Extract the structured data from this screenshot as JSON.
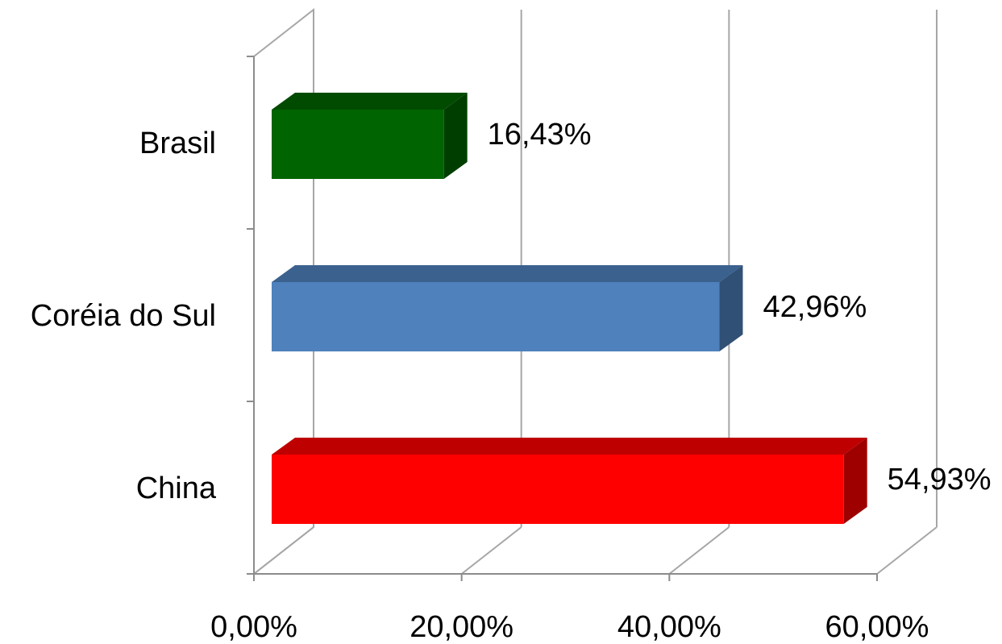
{
  "chart_data": {
    "type": "bar",
    "orientation": "horizontal",
    "three_d": true,
    "categories": [
      "Brasil",
      "Coréia do Sul",
      "China"
    ],
    "values": [
      16.43,
      42.96,
      54.93
    ],
    "data_labels": [
      "16,43%",
      "42,96%",
      "54,93%"
    ],
    "colors": [
      "#006400",
      "#4f81bd",
      "#ff0000"
    ],
    "xlim": [
      0,
      60
    ],
    "xticks": [
      0,
      20,
      40,
      60
    ],
    "xtick_labels": [
      "0,00%",
      "20,00%",
      "40,00%",
      "60,00%"
    ],
    "grid": true,
    "legend": "none",
    "title": "",
    "xlabel": "",
    "ylabel": ""
  }
}
